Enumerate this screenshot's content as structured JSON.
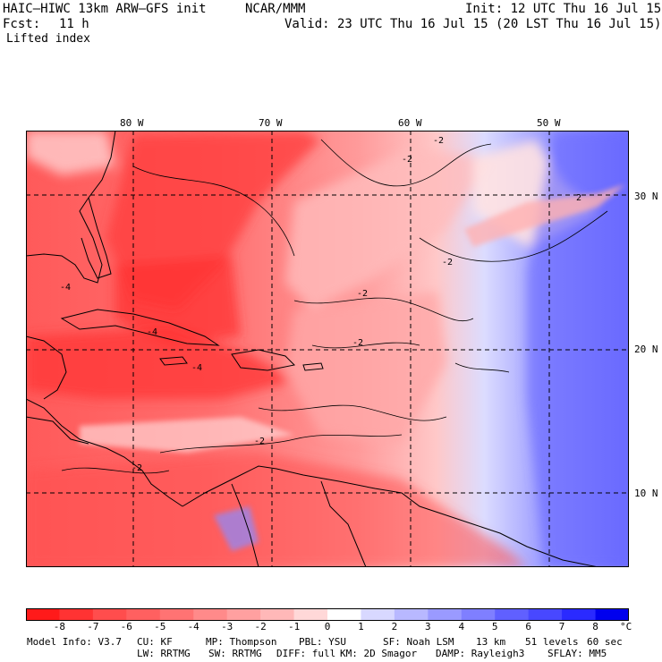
{
  "header": {
    "model_title": "HAIC–HIWC 13km ARW–GFS init",
    "org": "NCAR/MMM",
    "init": "Init: 12 UTC Thu 16 Jul 15",
    "fcst_label": "Fcst:",
    "fcst_value": "11 h",
    "valid": "Valid: 23 UTC Thu 16 Jul 15 (20 LST Thu 16 Jul 15)",
    "field_name": "Lifted index"
  },
  "map": {
    "lon_labels": [
      "80 W",
      "70 W",
      "60 W",
      "50 W"
    ],
    "lat_labels": [
      "30 N",
      "20 N",
      "10 N"
    ],
    "contour_label": "-2",
    "contour_label_alt": "-4",
    "contour_label_pos": "2"
  },
  "colorbar": {
    "ticks": [
      "-8",
      "-7",
      "-6",
      "-5",
      "-4",
      "-3",
      "-2",
      "-1",
      "0",
      "1",
      "2",
      "3",
      "4",
      "5",
      "6",
      "7",
      "8"
    ],
    "unit": "°C",
    "colors": [
      "#ff1a1a",
      "#ff3333",
      "#ff4d4d",
      "#ff6060",
      "#ff7373",
      "#ff8a8a",
      "#ffa0a0",
      "#ffb8b8",
      "#ffd8d8",
      "#ffffff",
      "#d8d8ff",
      "#b8b8ff",
      "#9a9aff",
      "#7f7fff",
      "#6060ff",
      "#4848ff",
      "#2a2aff",
      "#0000ee"
    ]
  },
  "footer": {
    "line1": [
      "Model Info: V3.7",
      "CU: KF",
      "MP: Thompson",
      "PBL: YSU",
      "SF: Noah LSM",
      "13 km",
      "51 levels",
      "60 sec"
    ],
    "line2": [
      "LW: RRTMG",
      "SW: RRTMG",
      "DIFF: full",
      "KM: 2D Smagor",
      "DAMP: Rayleigh3",
      "SFLAY: MM5"
    ]
  }
}
